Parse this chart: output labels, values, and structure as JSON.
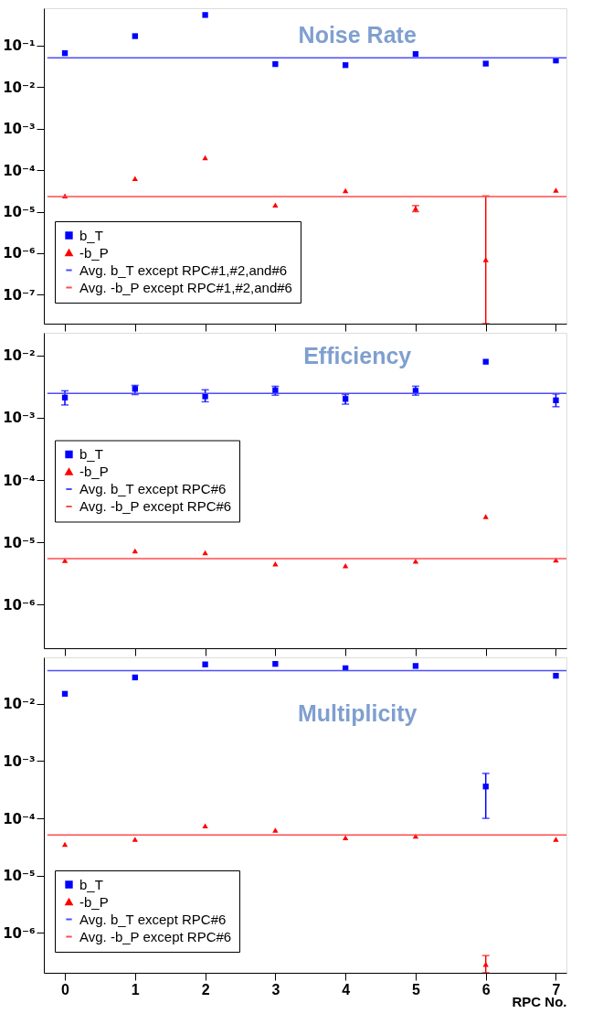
{
  "chart_data": [
    {
      "type": "scatter",
      "title": "Noise Rate",
      "log": true,
      "tick_labels": "y",
      "legend": "bottom left",
      "grid": false,
      "xlim": [
        -0.3,
        7.15
      ],
      "xticks": [
        0,
        1,
        2,
        3,
        4,
        5,
        6,
        7
      ],
      "ylim": [
        2e-08,
        0.8
      ],
      "yticks": [
        {
          "value": 0.1,
          "label": "10⁻¹"
        },
        {
          "value": 0.01,
          "label": "10⁻²"
        },
        {
          "value": 0.001,
          "label": "10⁻³"
        },
        {
          "value": 0.0001,
          "label": "10⁻⁴"
        },
        {
          "value": 1e-05,
          "label": "10⁻⁵"
        },
        {
          "value": 1e-06,
          "label": "10⁻⁶"
        },
        {
          "value": 1e-07,
          "label": "10⁻⁷"
        }
      ],
      "series": [
        {
          "name": "b_T",
          "marker": "square",
          "color": "#0000ff",
          "x": [
            0,
            1,
            2,
            3,
            4,
            5,
            6,
            7
          ],
          "values": [
            0.066,
            0.17,
            0.55,
            0.036,
            0.034,
            0.063,
            0.037,
            0.044
          ]
        },
        {
          "name": "-b_P",
          "marker": "triangle",
          "color": "#ff0000",
          "x": [
            0,
            1,
            2,
            3,
            4,
            5,
            6,
            7
          ],
          "values": [
            2.4e-05,
            6.3e-05,
            0.0002,
            1.45e-05,
            3.2e-05,
            1.2e-05,
            7e-07,
            3.3e-05
          ],
          "errors": [
            null,
            null,
            null,
            null,
            null,
            [
              1e-05,
              1.4e-05
            ],
            [
              2e-08,
              2.4e-05
            ],
            null
          ]
        },
        {
          "name": "Avg. b_T except RPC#1,#2,and#6",
          "type": "line",
          "color": "#4d4dff",
          "x": [
            -0.25,
            7.15
          ],
          "values": [
            0.051,
            0.051
          ]
        },
        {
          "name": "Avg. -b_P except RPC#1,#2,and#6",
          "type": "line",
          "color": "#ff4d4d",
          "x": [
            -0.25,
            7.15
          ],
          "values": [
            2.3e-05,
            2.3e-05
          ]
        }
      ]
    },
    {
      "type": "scatter",
      "title": "Efficiency",
      "log": true,
      "tick_labels": "y",
      "legend": "left",
      "grid": false,
      "xlim": [
        -0.3,
        7.15
      ],
      "xticks": [
        0,
        1,
        2,
        3,
        4,
        5,
        6,
        7
      ],
      "ylim": [
        2e-07,
        0.023
      ],
      "yticks": [
        {
          "value": 0.01,
          "label": "10⁻²"
        },
        {
          "value": 0.001,
          "label": "10⁻³"
        },
        {
          "value": 0.0001,
          "label": "10⁻⁴"
        },
        {
          "value": 1e-05,
          "label": "10⁻⁵"
        },
        {
          "value": 1e-06,
          "label": "10⁻⁶"
        }
      ],
      "series": [
        {
          "name": "b_T",
          "marker": "square",
          "color": "#0000ff",
          "x": [
            0,
            1,
            2,
            3,
            4,
            5,
            6,
            7
          ],
          "values": [
            0.0021,
            0.0029,
            0.0022,
            0.00275,
            0.002,
            0.0027,
            0.0079,
            0.0019
          ],
          "errors": [
            [
              0.0016,
              0.0027
            ],
            [
              0.00235,
              0.0033
            ],
            [
              0.0018,
              0.0028
            ],
            [
              0.0023,
              0.0032
            ],
            [
              0.00165,
              0.00235
            ],
            [
              0.0023,
              0.0032
            ],
            null,
            [
              0.0015,
              0.0024
            ]
          ]
        },
        {
          "name": "-b_P",
          "marker": "triangle",
          "color": "#ff0000",
          "x": [
            0,
            1,
            2,
            3,
            4,
            5,
            6,
            7
          ],
          "values": [
            5.1e-06,
            7.3e-06,
            6.8e-06,
            4.5e-06,
            4.2e-06,
            5e-06,
            2.6e-05,
            5.2e-06
          ]
        },
        {
          "name": "Avg. b_T except RPC#6",
          "type": "line",
          "color": "#4d4dff",
          "x": [
            -0.25,
            7.15
          ],
          "values": [
            0.00245,
            0.00245
          ]
        },
        {
          "name": "Avg. -b_P except RPC#6",
          "type": "line",
          "color": "#ff4d4d",
          "x": [
            -0.25,
            7.15
          ],
          "values": [
            5.5e-06,
            5.5e-06
          ]
        }
      ]
    },
    {
      "type": "scatter",
      "title": "Multiplicity",
      "log": true,
      "xlabel": "RPC No.",
      "legend": "bottom left",
      "grid": false,
      "xlim": [
        -0.3,
        7.15
      ],
      "xticks": [
        0,
        1,
        2,
        3,
        4,
        5,
        6,
        7
      ],
      "ylim": [
        2e-07,
        0.065
      ],
      "yticks": [
        {
          "value": 0.01,
          "label": "10⁻²"
        },
        {
          "value": 0.001,
          "label": "10⁻³"
        },
        {
          "value": 0.0001,
          "label": "10⁻⁴"
        },
        {
          "value": 1e-05,
          "label": "10⁻⁵"
        },
        {
          "value": 1e-06,
          "label": "10⁻⁶"
        }
      ],
      "series": [
        {
          "name": "b_T",
          "marker": "square",
          "color": "#0000ff",
          "x": [
            0,
            1,
            2,
            3,
            4,
            5,
            6,
            7
          ],
          "values": [
            0.015,
            0.029,
            0.049,
            0.05,
            0.042,
            0.046,
            0.00036,
            0.031
          ],
          "errors": [
            null,
            null,
            null,
            null,
            null,
            null,
            [
              0.0001,
              0.00061
            ],
            null
          ]
        },
        {
          "name": "-b_P",
          "marker": "triangle",
          "color": "#ff0000",
          "x": [
            0,
            1,
            2,
            3,
            4,
            5,
            6,
            7
          ],
          "values": [
            3.5e-05,
            4.3e-05,
            7.4e-05,
            6.2e-05,
            4.6e-05,
            4.9e-05,
            2.8e-07,
            4.3e-05
          ],
          "errors": [
            null,
            null,
            null,
            null,
            null,
            null,
            [
              2e-07,
              4e-07
            ],
            null
          ]
        },
        {
          "name": "Avg. b_T except RPC#6",
          "type": "line",
          "color": "#4d4dff",
          "x": [
            -0.25,
            7.15
          ],
          "values": [
            0.038,
            0.038
          ]
        },
        {
          "name": "Avg. -b_P except RPC#6",
          "type": "line",
          "color": "#ff4d4d",
          "x": [
            -0.25,
            7.15
          ],
          "values": [
            5.1e-05,
            5.1e-05
          ]
        }
      ]
    }
  ]
}
